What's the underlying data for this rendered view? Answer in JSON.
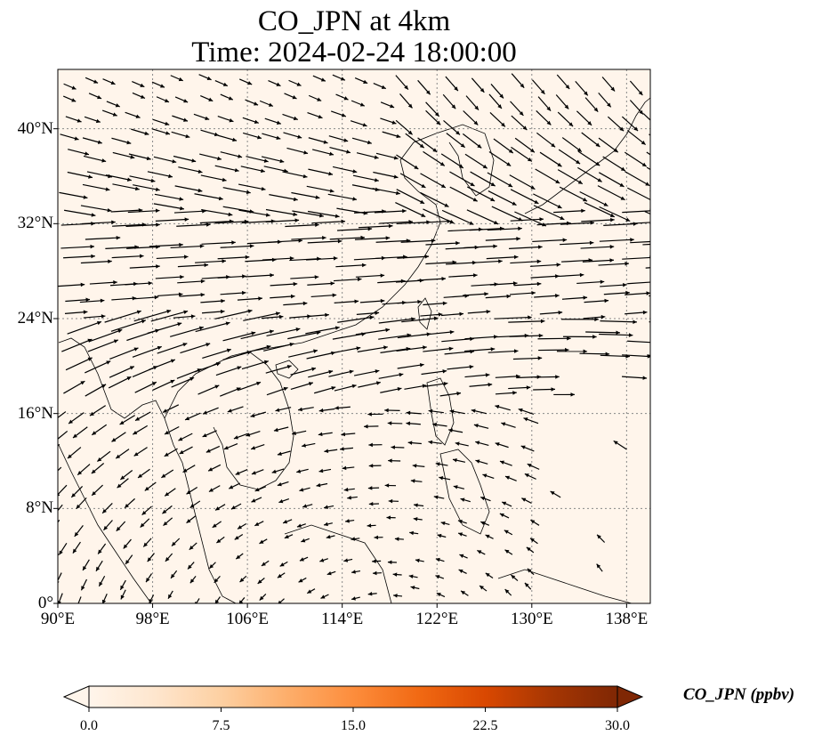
{
  "title": {
    "line1": "CO_JPN at 4km",
    "line2": "Time: 2024-02-24 18:00:00"
  },
  "map": {
    "lon_range": [
      90,
      140
    ],
    "lat_range": [
      0,
      45
    ],
    "lat_ticks": [
      {
        "value": 0,
        "label": "0°"
      },
      {
        "value": 8,
        "label": "8°N"
      },
      {
        "value": 16,
        "label": "16°N"
      },
      {
        "value": 24,
        "label": "24°N"
      },
      {
        "value": 32,
        "label": "32°N"
      },
      {
        "value": 40,
        "label": "40°N"
      }
    ],
    "lon_ticks": [
      {
        "value": 90,
        "label": "90°E"
      },
      {
        "value": 98,
        "label": "98°E"
      },
      {
        "value": 106,
        "label": "106°E"
      },
      {
        "value": 114,
        "label": "114°E"
      },
      {
        "value": 122,
        "label": "122°E"
      },
      {
        "value": 130,
        "label": "130°E"
      },
      {
        "value": 138,
        "label": "138°E"
      }
    ],
    "background_color": "#fff5eb",
    "gridlines": true
  },
  "colorbar": {
    "label": "CO_JPN (ppbv)",
    "min": 0,
    "max": 30,
    "extend": "both",
    "colormap": [
      "#fff5eb",
      "#fee6ce",
      "#fdd0a2",
      "#fdae6b",
      "#fd8d3c",
      "#f16913",
      "#d94801",
      "#a63603",
      "#7f2704"
    ],
    "ticks": [
      {
        "value": 0,
        "label": "0.0"
      },
      {
        "value": 7.5,
        "label": "7.5"
      },
      {
        "value": 15,
        "label": "15.0"
      },
      {
        "value": 22.5,
        "label": "22.5"
      },
      {
        "value": 30,
        "label": "30.0"
      }
    ]
  }
}
